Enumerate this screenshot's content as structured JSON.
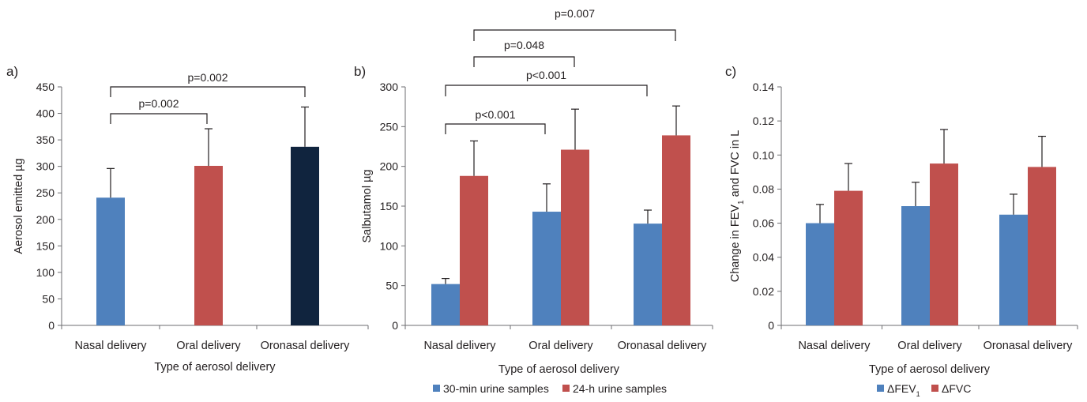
{
  "chart_data": [
    {
      "panel_label": "a)",
      "type": "bar",
      "categories": [
        "Nasal delivery",
        "Oral delivery",
        "Oronasal delivery"
      ],
      "series": [
        {
          "values": [
            241,
            301,
            337
          ],
          "errors": [
            55,
            70,
            75
          ],
          "colors": [
            "#4f81bd",
            "#c0504d",
            "#10243e"
          ]
        }
      ],
      "xlabel": "Type of aerosol delivery",
      "ylabel": "Aerosol emitted µg",
      "ylim": [
        0,
        450
      ],
      "yticks": [
        "0",
        "50",
        "100",
        "150",
        "200",
        "250",
        "300",
        "350",
        "400",
        "450"
      ],
      "comparisons": [
        {
          "from": 0,
          "to": 1,
          "label": "p=0.002"
        },
        {
          "from": 0,
          "to": 2,
          "label": "p=0.002"
        }
      ]
    },
    {
      "panel_label": "b)",
      "type": "bar",
      "categories": [
        "Nasal delivery",
        "Oral delivery",
        "Oronasal delivery"
      ],
      "series": [
        {
          "name": "30-min urine samples",
          "color": "#4f81bd",
          "values": [
            52,
            143,
            128
          ],
          "errors": [
            7,
            35,
            17
          ]
        },
        {
          "name": "24-h urine samples",
          "color": "#c0504d",
          "values": [
            188,
            221,
            239
          ],
          "errors": [
            44,
            51,
            37
          ]
        }
      ],
      "xlabel": "Type of aerosol delivery",
      "ylabel": "Salbutamol µg",
      "ylim": [
        0,
        300
      ],
      "yticks": [
        "0",
        "50",
        "100",
        "150",
        "200",
        "250",
        "300"
      ],
      "comparisons": [
        {
          "from": [
            0,
            0
          ],
          "to": [
            1,
            0
          ],
          "label": "p<0.001"
        },
        {
          "from": [
            0,
            0
          ],
          "to": [
            2,
            0
          ],
          "label": "p<0.001"
        },
        {
          "from": [
            0,
            1
          ],
          "to": [
            1,
            1
          ],
          "label": "p=0.048"
        },
        {
          "from": [
            0,
            1
          ],
          "to": [
            2,
            1
          ],
          "label": "p=0.007"
        }
      ],
      "legend": "bottom-center"
    },
    {
      "panel_label": "c)",
      "type": "bar",
      "categories": [
        "Nasal delivery",
        "Oral delivery",
        "Oronasal delivery"
      ],
      "series": [
        {
          "name": "ΔFEV",
          "name_sub": "1",
          "color": "#4f81bd",
          "values": [
            0.06,
            0.07,
            0.065
          ],
          "errors": [
            0.011,
            0.014,
            0.012
          ]
        },
        {
          "name": "ΔFVC",
          "color": "#c0504d",
          "values": [
            0.079,
            0.095,
            0.093
          ],
          "errors": [
            0.016,
            0.02,
            0.018
          ]
        }
      ],
      "xlabel": "Type of aerosol delivery",
      "ylabel_parts": [
        "Change in FEV",
        "1",
        " and FVC in L"
      ],
      "ylim": [
        0,
        0.14
      ],
      "yticks": [
        "0",
        "0.02",
        "0.04",
        "0.06",
        "0.08",
        "0.10",
        "0.12",
        "0.14"
      ],
      "legend": "bottom-center"
    }
  ]
}
